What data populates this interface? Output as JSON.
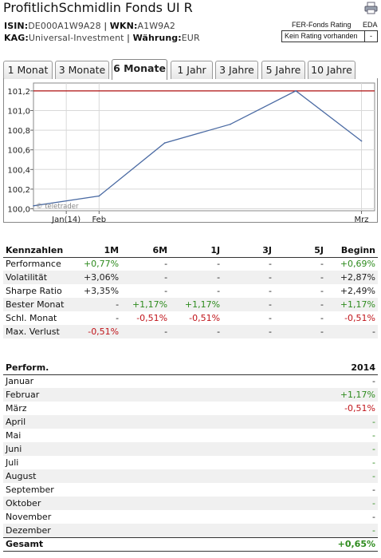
{
  "header": {
    "title": "ProfitlichSchmidlin Fonds UI R",
    "isin_label": "ISIN:",
    "isin": "DE000A1W9A28",
    "sep": "|",
    "wkn_label": "WKN:",
    "wkn": "A1W9A2",
    "kag_label": "KAG:",
    "kag": "Universal-Investment",
    "waehrung_label": "Währung:",
    "waehrung": "EUR",
    "print_icon": "printer-icon"
  },
  "fer": {
    "label": "FER-Fonds Rating",
    "eda": "EDA",
    "value_label": "Kein Rating vorhanden",
    "value": "-"
  },
  "tabs": [
    {
      "label": "1 Monat",
      "active": false
    },
    {
      "label": "3 Monate",
      "active": false
    },
    {
      "label": "6 Monate",
      "active": true
    },
    {
      "label": "1 Jahr",
      "active": false
    },
    {
      "label": "3 Jahre",
      "active": false
    },
    {
      "label": "5 Jahre",
      "active": false
    },
    {
      "label": "10 Jahre",
      "active": false
    }
  ],
  "chart_data": {
    "type": "line",
    "x": [
      0,
      1,
      2,
      3,
      4,
      5
    ],
    "x_tick_labels": [
      {
        "label": "Jan(14)",
        "at": 0.5
      },
      {
        "label": "Feb",
        "at": 1.0
      },
      {
        "label": "Mrz",
        "at": 5.0
      }
    ],
    "series": [
      {
        "values": [
          100.03,
          100.13,
          100.67,
          100.86,
          101.2,
          100.69
        ],
        "color": "#4a6aa3"
      }
    ],
    "reference_line": {
      "value": 101.2,
      "color": "#b01010"
    },
    "y_ticks": [
      "100,0",
      "100,2",
      "100,4",
      "100,6",
      "100,8",
      "101,0",
      "101,2"
    ],
    "y_tick_values": [
      100.0,
      100.2,
      100.4,
      100.6,
      100.8,
      101.0,
      101.2
    ],
    "ylim": [
      99.98,
      101.28
    ],
    "xlim": [
      0,
      5.2
    ],
    "watermark": "© teletrader",
    "grid": true
  },
  "kennzahlen": {
    "headers": [
      "Kennzahlen",
      "1M",
      "6M",
      "1J",
      "3J",
      "5J",
      "Beginn"
    ],
    "rows": [
      {
        "label": "Performance",
        "cells": [
          {
            "v": "+0,77%",
            "c": "pos"
          },
          {
            "v": "-",
            "c": "dash"
          },
          {
            "v": "-",
            "c": "dash"
          },
          {
            "v": "-",
            "c": "dash"
          },
          {
            "v": "-",
            "c": "dash"
          },
          {
            "v": "+0,69%",
            "c": "pos"
          }
        ]
      },
      {
        "label": "Volatilität",
        "cells": [
          {
            "v": "+3,06%",
            "c": "dash"
          },
          {
            "v": "-",
            "c": "dash"
          },
          {
            "v": "-",
            "c": "dash"
          },
          {
            "v": "-",
            "c": "dash"
          },
          {
            "v": "-",
            "c": "dash"
          },
          {
            "v": "+2,87%",
            "c": "dash"
          }
        ]
      },
      {
        "label": "Sharpe Ratio",
        "cells": [
          {
            "v": "+3,35%",
            "c": "dash"
          },
          {
            "v": "-",
            "c": "dash"
          },
          {
            "v": "-",
            "c": "dash"
          },
          {
            "v": "-",
            "c": "dash"
          },
          {
            "v": "-",
            "c": "dash"
          },
          {
            "v": "+2,49%",
            "c": "dash"
          }
        ]
      },
      {
        "label": "Bester Monat",
        "cells": [
          {
            "v": "-",
            "c": "dash"
          },
          {
            "v": "+1,17%",
            "c": "pos"
          },
          {
            "v": "+1,17%",
            "c": "pos"
          },
          {
            "v": "-",
            "c": "dash"
          },
          {
            "v": "-",
            "c": "dash"
          },
          {
            "v": "+1,17%",
            "c": "pos"
          }
        ]
      },
      {
        "label": "Schl. Monat",
        "cells": [
          {
            "v": "-",
            "c": "dash"
          },
          {
            "v": "-0,51%",
            "c": "neg"
          },
          {
            "v": "-0,51%",
            "c": "neg"
          },
          {
            "v": "-",
            "c": "dash"
          },
          {
            "v": "-",
            "c": "dash"
          },
          {
            "v": "-0,51%",
            "c": "neg"
          }
        ]
      },
      {
        "label": "Max. Verlust",
        "cells": [
          {
            "v": "-0,51%",
            "c": "neg"
          },
          {
            "v": "-",
            "c": "dash"
          },
          {
            "v": "-",
            "c": "dash"
          },
          {
            "v": "-",
            "c": "dash"
          },
          {
            "v": "-",
            "c": "dash"
          },
          {
            "v": "-",
            "c": "dash"
          }
        ]
      }
    ]
  },
  "performance": {
    "headers": [
      "Perform.",
      "2014"
    ],
    "rows": [
      {
        "label": "Januar",
        "v": "-",
        "c": "dash"
      },
      {
        "label": "Februar",
        "v": "+1,17%",
        "c": "pos"
      },
      {
        "label": "März",
        "v": "-0,51%",
        "c": "neg"
      },
      {
        "label": "April",
        "v": "-",
        "c": "green-dash"
      },
      {
        "label": "Mai",
        "v": "-",
        "c": "green-dash"
      },
      {
        "label": "Juni",
        "v": "-",
        "c": "green-dash"
      },
      {
        "label": "Juli",
        "v": "-",
        "c": "green-dash"
      },
      {
        "label": "August",
        "v": "-",
        "c": "green-dash"
      },
      {
        "label": "September",
        "v": "-",
        "c": "dash"
      },
      {
        "label": "Oktober",
        "v": "-",
        "c": "green-dash"
      },
      {
        "label": "November",
        "v": "-",
        "c": "dash"
      },
      {
        "label": "Dezember",
        "v": "-",
        "c": "green-dash"
      }
    ],
    "total": {
      "label": "Gesamt",
      "v": "+0,65%",
      "c": "pos"
    }
  }
}
